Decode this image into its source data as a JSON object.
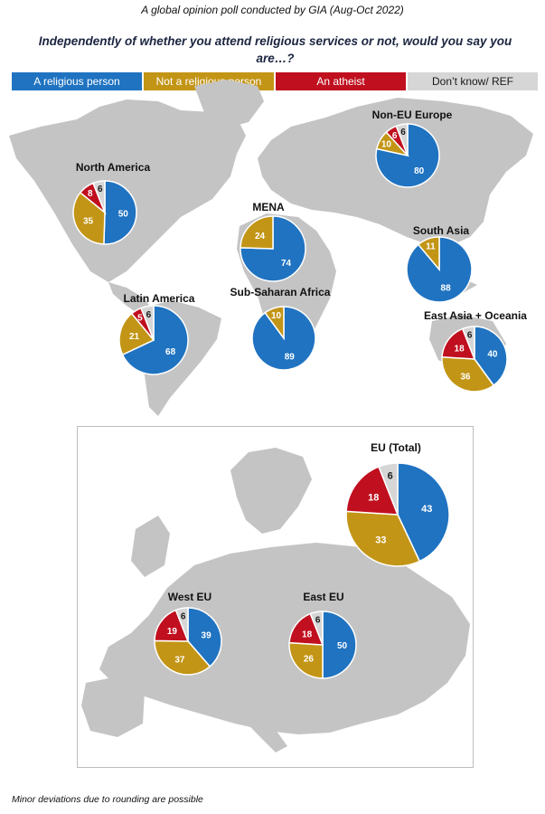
{
  "title": "A global opinion poll conducted by GIA (Aug-Oct 2022)",
  "question": "Independently of whether you attend religious services or not, would you say you are…?",
  "footnote": "Minor deviations due to rounding are possible",
  "colors": {
    "religious": "#1f73c1",
    "not_religious": "#c39516",
    "atheist": "#c00f1e",
    "dont_know": "#d6d6d6",
    "map": "#c4c4c4"
  },
  "chart_data": {
    "type": "pie",
    "categories": [
      "A religious person",
      "Not a religious person",
      "An atheist",
      "Don’t know/ REF"
    ],
    "series": [
      {
        "name": "North America",
        "values": [
          50,
          35,
          8,
          6
        ]
      },
      {
        "name": "Latin America",
        "values": [
          68,
          21,
          5,
          6
        ]
      },
      {
        "name": "MENA",
        "values": [
          74,
          24,
          0,
          0
        ]
      },
      {
        "name": "Sub-Saharan Africa",
        "values": [
          89,
          10,
          0,
          0
        ]
      },
      {
        "name": "Non-EU Europe",
        "values": [
          80,
          10,
          6,
          6
        ]
      },
      {
        "name": "South Asia",
        "values": [
          88,
          11,
          0,
          0
        ]
      },
      {
        "name": "East Asia + Oceania",
        "values": [
          40,
          36,
          18,
          6
        ]
      },
      {
        "name": "EU (Total)",
        "values": [
          43,
          33,
          18,
          6
        ]
      },
      {
        "name": "West EU",
        "values": [
          39,
          37,
          19,
          6
        ]
      },
      {
        "name": "East EU",
        "values": [
          50,
          26,
          18,
          6
        ]
      }
    ],
    "shown_labels": {
      "North America": [
        "50",
        "35",
        "8",
        "6"
      ],
      "Latin America": [
        "68",
        "21",
        "5",
        "6"
      ],
      "MENA": [
        "74",
        "24",
        "",
        ""
      ],
      "Sub-Saharan Africa": [
        "89",
        "10",
        "",
        ""
      ],
      "Non-EU Europe": [
        "80",
        "10",
        "6",
        "6"
      ],
      "South Asia": [
        "88",
        "11",
        "",
        ""
      ],
      "East Asia + Oceania": [
        "40",
        "36",
        "18",
        "6"
      ],
      "EU (Total)": [
        "43",
        "33",
        "18",
        "6"
      ],
      "West EU": [
        "39",
        "37",
        "19",
        "6"
      ],
      "East EU": [
        "50",
        "26",
        "18",
        "6"
      ]
    }
  }
}
